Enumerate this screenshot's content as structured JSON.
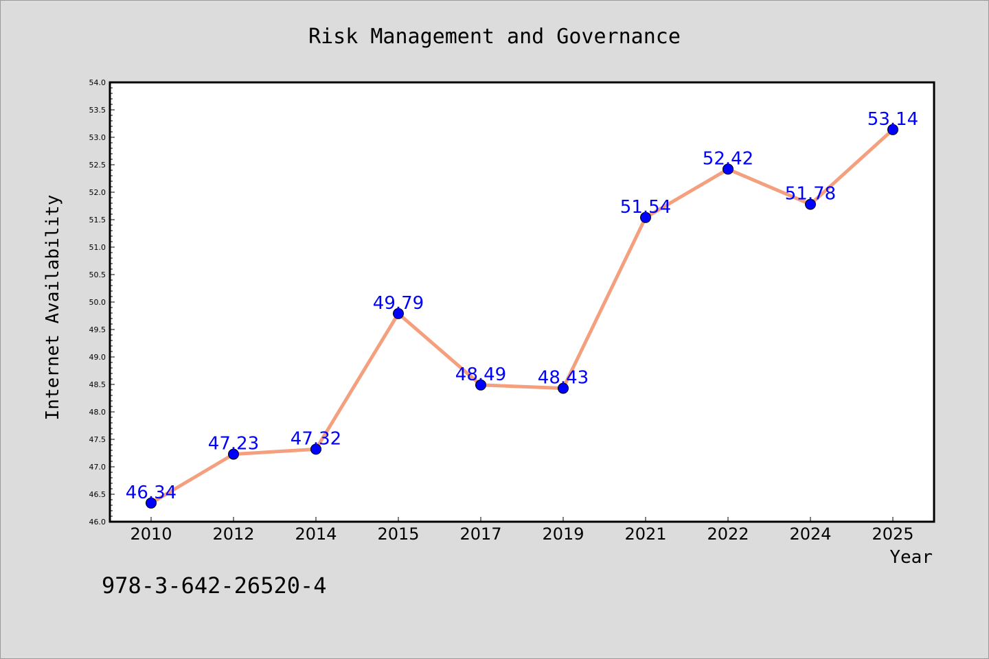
{
  "chart_data": {
    "type": "line",
    "title": "Risk Management and Governance",
    "xlabel": "Year",
    "ylabel": "Internet Availability",
    "categories": [
      "2010",
      "2012",
      "2014",
      "2015",
      "2017",
      "2019",
      "2021",
      "2022",
      "2024",
      "2025"
    ],
    "series": [
      {
        "values": [
          46.34,
          47.23,
          47.32,
          49.79,
          48.49,
          48.43,
          51.54,
          52.42,
          51.78,
          53.14
        ]
      }
    ],
    "data_labels": [
      "46.34",
      "47.23",
      "47.32",
      "49.79",
      "48.49",
      "48.43",
      "51.54",
      "52.42",
      "51.78",
      "53.14"
    ],
    "ylim": [
      46.0,
      54.0
    ],
    "yticks": [
      "46.0",
      "46.5",
      "47.0",
      "47.5",
      "48.0",
      "48.5",
      "49.0",
      "49.5",
      "50.0",
      "50.5",
      "51.0",
      "51.5",
      "52.0",
      "52.5",
      "53.0",
      "53.5",
      "54.0"
    ],
    "grid": false,
    "colors": {
      "line": "#f4a07f",
      "marker": "#0000ff",
      "label": "#0000ff",
      "background": "#dcdcdc",
      "plot_background": "#ffffff"
    }
  },
  "footer": {
    "isbn": "978-3-642-26520-4"
  }
}
